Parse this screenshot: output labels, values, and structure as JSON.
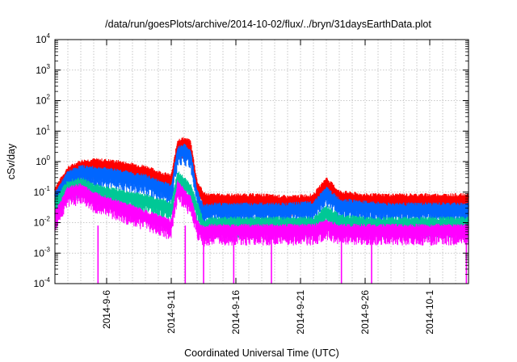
{
  "chart_data": {
    "type": "line",
    "title": "/data/run/goesPlots/archive/2014-10-02/flux/../bryn/31daysEarthData.plot",
    "xlabel": "Coordinated Universal Time (UTC)",
    "ylabel": "cSv/day",
    "y_scale": "log",
    "ylim": [
      0.0001,
      10000
    ],
    "xlim": [
      "2014-09-02",
      "2014-10-04"
    ],
    "grid": true,
    "legend": "none",
    "y_ticks": [
      {
        "base": "10",
        "exp": "-4",
        "value": 0.0001
      },
      {
        "base": "10",
        "exp": "-3",
        "value": 0.001
      },
      {
        "base": "10",
        "exp": "-2",
        "value": 0.01
      },
      {
        "base": "10",
        "exp": "-1",
        "value": 0.1
      },
      {
        "base": "10",
        "exp": "0",
        "value": 1
      },
      {
        "base": "10",
        "exp": "1",
        "value": 10
      },
      {
        "base": "10",
        "exp": "2",
        "value": 100
      },
      {
        "base": "10",
        "exp": "3",
        "value": 1000
      },
      {
        "base": "10",
        "exp": "4",
        "value": 10000
      }
    ],
    "x_ticks": [
      {
        "label": "2014-9-6",
        "date": "2014-09-06"
      },
      {
        "label": "2014-9-11",
        "date": "2014-09-11"
      },
      {
        "label": "2014-9-16",
        "date": "2014-09-16"
      },
      {
        "label": "2014-9-21",
        "date": "2014-09-21"
      },
      {
        "label": "2014-9-26",
        "date": "2014-09-26"
      },
      {
        "label": "2014-10-1",
        "date": "2014-10-01"
      }
    ],
    "series": [
      {
        "color": "#ff0000",
        "x": [
          "2014-09-02",
          "2014-09-03",
          "2014-09-04",
          "2014-09-05",
          "2014-09-06",
          "2014-09-07",
          "2014-09-08",
          "2014-09-09",
          "2014-09-10",
          "2014-09-11",
          "2014-09-11T12:00",
          "2014-09-12",
          "2014-09-12T12:00",
          "2014-09-13",
          "2014-09-13T12:00",
          "2014-09-14",
          "2014-09-16",
          "2014-09-18",
          "2014-09-20",
          "2014-09-22",
          "2014-09-23",
          "2014-09-24",
          "2014-09-26",
          "2014-09-28",
          "2014-09-30",
          "2014-10-02",
          "2014-10-04"
        ],
        "values": [
          0.12,
          0.55,
          0.9,
          1.0,
          0.95,
          0.85,
          0.7,
          0.6,
          0.4,
          0.3,
          4.5,
          5.0,
          4.0,
          0.2,
          0.08,
          0.07,
          0.07,
          0.07,
          0.06,
          0.07,
          0.25,
          0.09,
          0.07,
          0.07,
          0.07,
          0.07,
          0.07
        ]
      },
      {
        "color": "#0066ff",
        "x": [
          "2014-09-02",
          "2014-09-03",
          "2014-09-04",
          "2014-09-05",
          "2014-09-06",
          "2014-09-07",
          "2014-09-08",
          "2014-09-09",
          "2014-09-10",
          "2014-09-11",
          "2014-09-11T12:00",
          "2014-09-12",
          "2014-09-12T12:00",
          "2014-09-13",
          "2014-09-13T12:00",
          "2014-09-14",
          "2014-09-16",
          "2014-09-18",
          "2014-09-20",
          "2014-09-22",
          "2014-09-23",
          "2014-09-24",
          "2014-09-26",
          "2014-09-28",
          "2014-09-30",
          "2014-10-02",
          "2014-10-04"
        ],
        "values": [
          0.08,
          0.4,
          0.6,
          0.55,
          0.5,
          0.45,
          0.35,
          0.3,
          0.2,
          0.15,
          2.5,
          3.0,
          2.0,
          0.1,
          0.03,
          0.035,
          0.035,
          0.035,
          0.035,
          0.04,
          0.12,
          0.05,
          0.04,
          0.035,
          0.035,
          0.035,
          0.035
        ]
      },
      {
        "color": "#00c896",
        "x": [
          "2014-09-02",
          "2014-09-03",
          "2014-09-04",
          "2014-09-05",
          "2014-09-06",
          "2014-09-07",
          "2014-09-08",
          "2014-09-09",
          "2014-09-10",
          "2014-09-11",
          "2014-09-11T12:00",
          "2014-09-12",
          "2014-09-12T12:00",
          "2014-09-13",
          "2014-09-13T12:00",
          "2014-09-14",
          "2014-09-16",
          "2014-09-18",
          "2014-09-20",
          "2014-09-22",
          "2014-09-23",
          "2014-09-24",
          "2014-09-26",
          "2014-09-28",
          "2014-09-30",
          "2014-10-02",
          "2014-10-04"
        ],
        "values": [
          0.05,
          0.2,
          0.25,
          0.15,
          0.12,
          0.1,
          0.08,
          0.07,
          0.05,
          0.04,
          0.4,
          0.25,
          0.15,
          0.04,
          0.01,
          0.012,
          0.012,
          0.012,
          0.012,
          0.012,
          0.03,
          0.015,
          0.012,
          0.012,
          0.012,
          0.012,
          0.012
        ]
      },
      {
        "color": "#ff00ff",
        "x": [
          "2014-09-02",
          "2014-09-03",
          "2014-09-04",
          "2014-09-05",
          "2014-09-06",
          "2014-09-07",
          "2014-09-08",
          "2014-09-09",
          "2014-09-10",
          "2014-09-11",
          "2014-09-11T12:00",
          "2014-09-12",
          "2014-09-12T12:00",
          "2014-09-13",
          "2014-09-13T12:00",
          "2014-09-14",
          "2014-09-16",
          "2014-09-18",
          "2014-09-20",
          "2014-09-22",
          "2014-09-23",
          "2014-09-24",
          "2014-09-26",
          "2014-09-28",
          "2014-09-30",
          "2014-10-02",
          "2014-10-04"
        ],
        "values": [
          0.02,
          0.12,
          0.15,
          0.08,
          0.06,
          0.04,
          0.03,
          0.02,
          0.015,
          0.01,
          0.2,
          0.1,
          0.06,
          0.01,
          0.006,
          0.007,
          0.007,
          0.007,
          0.007,
          0.007,
          0.01,
          0.007,
          0.007,
          0.007,
          0.007,
          0.007,
          0.007
        ]
      }
    ],
    "dropouts": {
      "color": "#ff00ff",
      "x": [
        "2014-09-05T08:00",
        "2014-09-12T02:00",
        "2014-09-13T12:00",
        "2014-09-15T20:00",
        "2014-09-18T18:00",
        "2014-09-24T04:00",
        "2014-09-26T12:00",
        "2014-10-03T20:00"
      ],
      "low": 0.0001
    }
  }
}
